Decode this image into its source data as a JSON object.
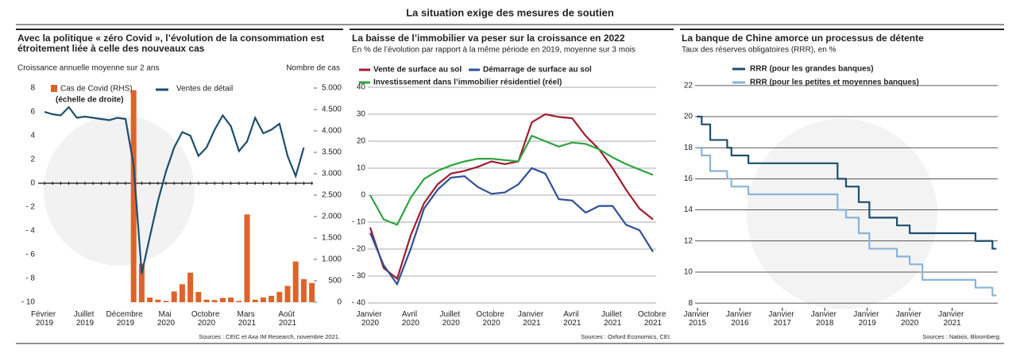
{
  "title": "La situation exige des mesures de soutien",
  "chart_data": [
    {
      "type": "combo",
      "title": [
        "Avec la politique « zéro Covid », l’évolution de la consommation est",
        "étroitement liée à celle des nouveaux cas"
      ],
      "y_label": "Croissance annuelle moyenne sur 2 ans",
      "y2_label": "Nombre de cas",
      "categories": [
        "Février 2019",
        null,
        null,
        null,
        null,
        "Juillet 2019",
        null,
        null,
        null,
        null,
        "Décembre 2019",
        null,
        null,
        null,
        null,
        "Mai 2020",
        null,
        null,
        null,
        null,
        "Octobre 2020",
        null,
        null,
        null,
        null,
        "Mars 2021",
        null,
        null,
        null,
        null,
        "Août 2021",
        null,
        null,
        null
      ],
      "series": [
        {
          "name": "Cas de Covid (RHS)",
          "note": "(échelle de droite)",
          "kind": "bar",
          "axis": "y2",
          "color": "#e0622a",
          "values": [
            null,
            null,
            null,
            null,
            null,
            null,
            null,
            null,
            null,
            null,
            null,
            4950,
            900,
            110,
            60,
            30,
            250,
            420,
            690,
            240,
            60,
            50,
            100,
            110,
            30,
            2050,
            60,
            110,
            150,
            240,
            380,
            950,
            540,
            450
          ]
        },
        {
          "name": "Ventes de détail",
          "kind": "line",
          "color": "#1d4e6e",
          "values": [
            6.0,
            5.8,
            5.7,
            6.4,
            5.5,
            5.6,
            5.5,
            5.4,
            5.3,
            5.5,
            5.4,
            1.5,
            -7.6,
            -4.5,
            -1.5,
            1.0,
            3.0,
            4.3,
            4.0,
            2.3,
            3.0,
            4.5,
            5.7,
            4.8,
            2.7,
            3.5,
            5.5,
            4.2,
            4.5,
            5.0,
            2.3,
            0.6,
            3.0,
            null
          ]
        }
      ],
      "ylim": [
        -10,
        8
      ],
      "yticks": [
        8,
        6,
        4,
        2,
        0,
        {
          "value": -2,
          "label": "- 2"
        },
        {
          "value": -4,
          "label": "- 4"
        },
        {
          "value": -6,
          "label": "- 6"
        },
        {
          "value": -8,
          "label": "- 8"
        },
        {
          "value": -10,
          "label": "- 10"
        }
      ],
      "y2lim": [
        0,
        5000
      ],
      "y2ticks": [
        {
          "value": 5000,
          "label": "5.000"
        },
        {
          "value": 4500,
          "label": "4.500"
        },
        {
          "value": 4000,
          "label": "4.000"
        },
        {
          "value": 3500,
          "label": "3.500"
        },
        {
          "value": 3000,
          "label": "3.000"
        },
        {
          "value": 2500,
          "label": "2.500"
        },
        {
          "value": 2000,
          "label": "2.000"
        },
        {
          "value": 1500,
          "label": "1.500"
        },
        {
          "value": 1000,
          "label": "1.000"
        },
        500,
        0
      ],
      "source": "Sources : CEIC et Axa IM Research, novembre 2021."
    },
    {
      "type": "line",
      "title": [
        "La baisse de l’immobilier va peser sur la croissance en 2022"
      ],
      "subtitle": "En % de l’évolution par rapport à la même période en 2019, moyenne sur 3 mois",
      "categories": [
        "Janvier 2020",
        null,
        null,
        "Avril 2020",
        null,
        null,
        "Juillet 2020",
        null,
        null,
        "Octobre 2020",
        null,
        null,
        "Janvier 2021",
        null,
        null,
        "Avril 2021",
        null,
        null,
        "Juillet 2021",
        null,
        null,
        "Octobre 2021"
      ],
      "series": [
        {
          "name": "Vente de surface au sol",
          "color": "#a01c2e",
          "values": [
            -12,
            -27,
            -31,
            -15,
            -3,
            4,
            8,
            9,
            10.5,
            12.5,
            11.5,
            12.5,
            27,
            30,
            29,
            28.5,
            22,
            17,
            10,
            2,
            -5,
            -9
          ]
        },
        {
          "name": "Démarrage de surface au sol",
          "color": "#2e4f9a",
          "values": [
            -14,
            -26,
            -33,
            -20,
            -5,
            2,
            6.5,
            7,
            3,
            0.5,
            1,
            4,
            10,
            8,
            -1.5,
            -2,
            -6.5,
            -4,
            -4,
            -11,
            -13,
            -21
          ]
        },
        {
          "name": "Investissement dans l’immobilier résidentiel (réel)",
          "color": "#2ea33f",
          "values": [
            0,
            -9,
            -11,
            -1,
            6,
            9,
            11,
            12.5,
            13.5,
            13.5,
            13,
            12.5,
            22,
            20,
            18,
            19.5,
            19,
            17,
            14,
            11.5,
            9.5,
            7.5
          ]
        }
      ],
      "ylim": [
        -40,
        40
      ],
      "yticks": [
        40,
        30,
        20,
        10,
        0,
        {
          "value": -10,
          "label": "- 10"
        },
        {
          "value": -20,
          "label": "- 20"
        },
        {
          "value": -30,
          "label": "- 30"
        },
        {
          "value": -40,
          "label": "- 40"
        }
      ],
      "grid": true,
      "source": "Sources : Oxford Economics, CEI."
    },
    {
      "type": "step",
      "title": [
        "La banque de Chine amorce un processus de détente"
      ],
      "subtitle": "Taux des réserves obligatoires (RRR), en %",
      "series": [
        {
          "name": "RRR (pour les grandes banques)",
          "color": "#1d4e6e",
          "x": [
            2015.0,
            2015.1,
            2015.3,
            2015.7,
            2015.8,
            2016.2,
            2018.3,
            2018.5,
            2018.8,
            2019.05,
            2019.7,
            2020.0,
            2021.55,
            2021.95
          ],
          "values": [
            20,
            19.5,
            18.5,
            18,
            17.5,
            17,
            16,
            15.5,
            14.5,
            13.5,
            13,
            12.5,
            12,
            11.5
          ]
        },
        {
          "name": "RRR (pour les petites et moyennes banques)",
          "color": "#8ab4d8",
          "x": [
            2015.0,
            2015.1,
            2015.3,
            2015.7,
            2015.8,
            2016.2,
            2018.3,
            2018.5,
            2018.8,
            2019.05,
            2019.7,
            2020.0,
            2020.3,
            2021.55,
            2021.95
          ],
          "values": [
            18,
            17.5,
            16.5,
            16,
            15.5,
            15,
            14,
            13.5,
            12.5,
            11.5,
            11,
            10.5,
            9.5,
            9,
            8.5
          ]
        }
      ],
      "xlim": [
        2015,
        2022
      ],
      "xticks": [
        {
          "value": 2015,
          "label": "Janvier 2015"
        },
        {
          "value": 2016,
          "label": "Janvier 2016"
        },
        {
          "value": 2017,
          "label": "Janvier 2017"
        },
        {
          "value": 2018,
          "label": "Janvier 2018"
        },
        {
          "value": 2019,
          "label": "Janvier 2019"
        },
        {
          "value": 2020,
          "label": "Janvier 2020"
        },
        {
          "value": 2021,
          "label": "Janvier 2021"
        }
      ],
      "ylim": [
        7.6,
        22.4
      ],
      "yticks": [
        22,
        20,
        18,
        16,
        14,
        12,
        10,
        8
      ],
      "grid": true,
      "source": "Sources : Natixis, Bloomberg."
    }
  ]
}
